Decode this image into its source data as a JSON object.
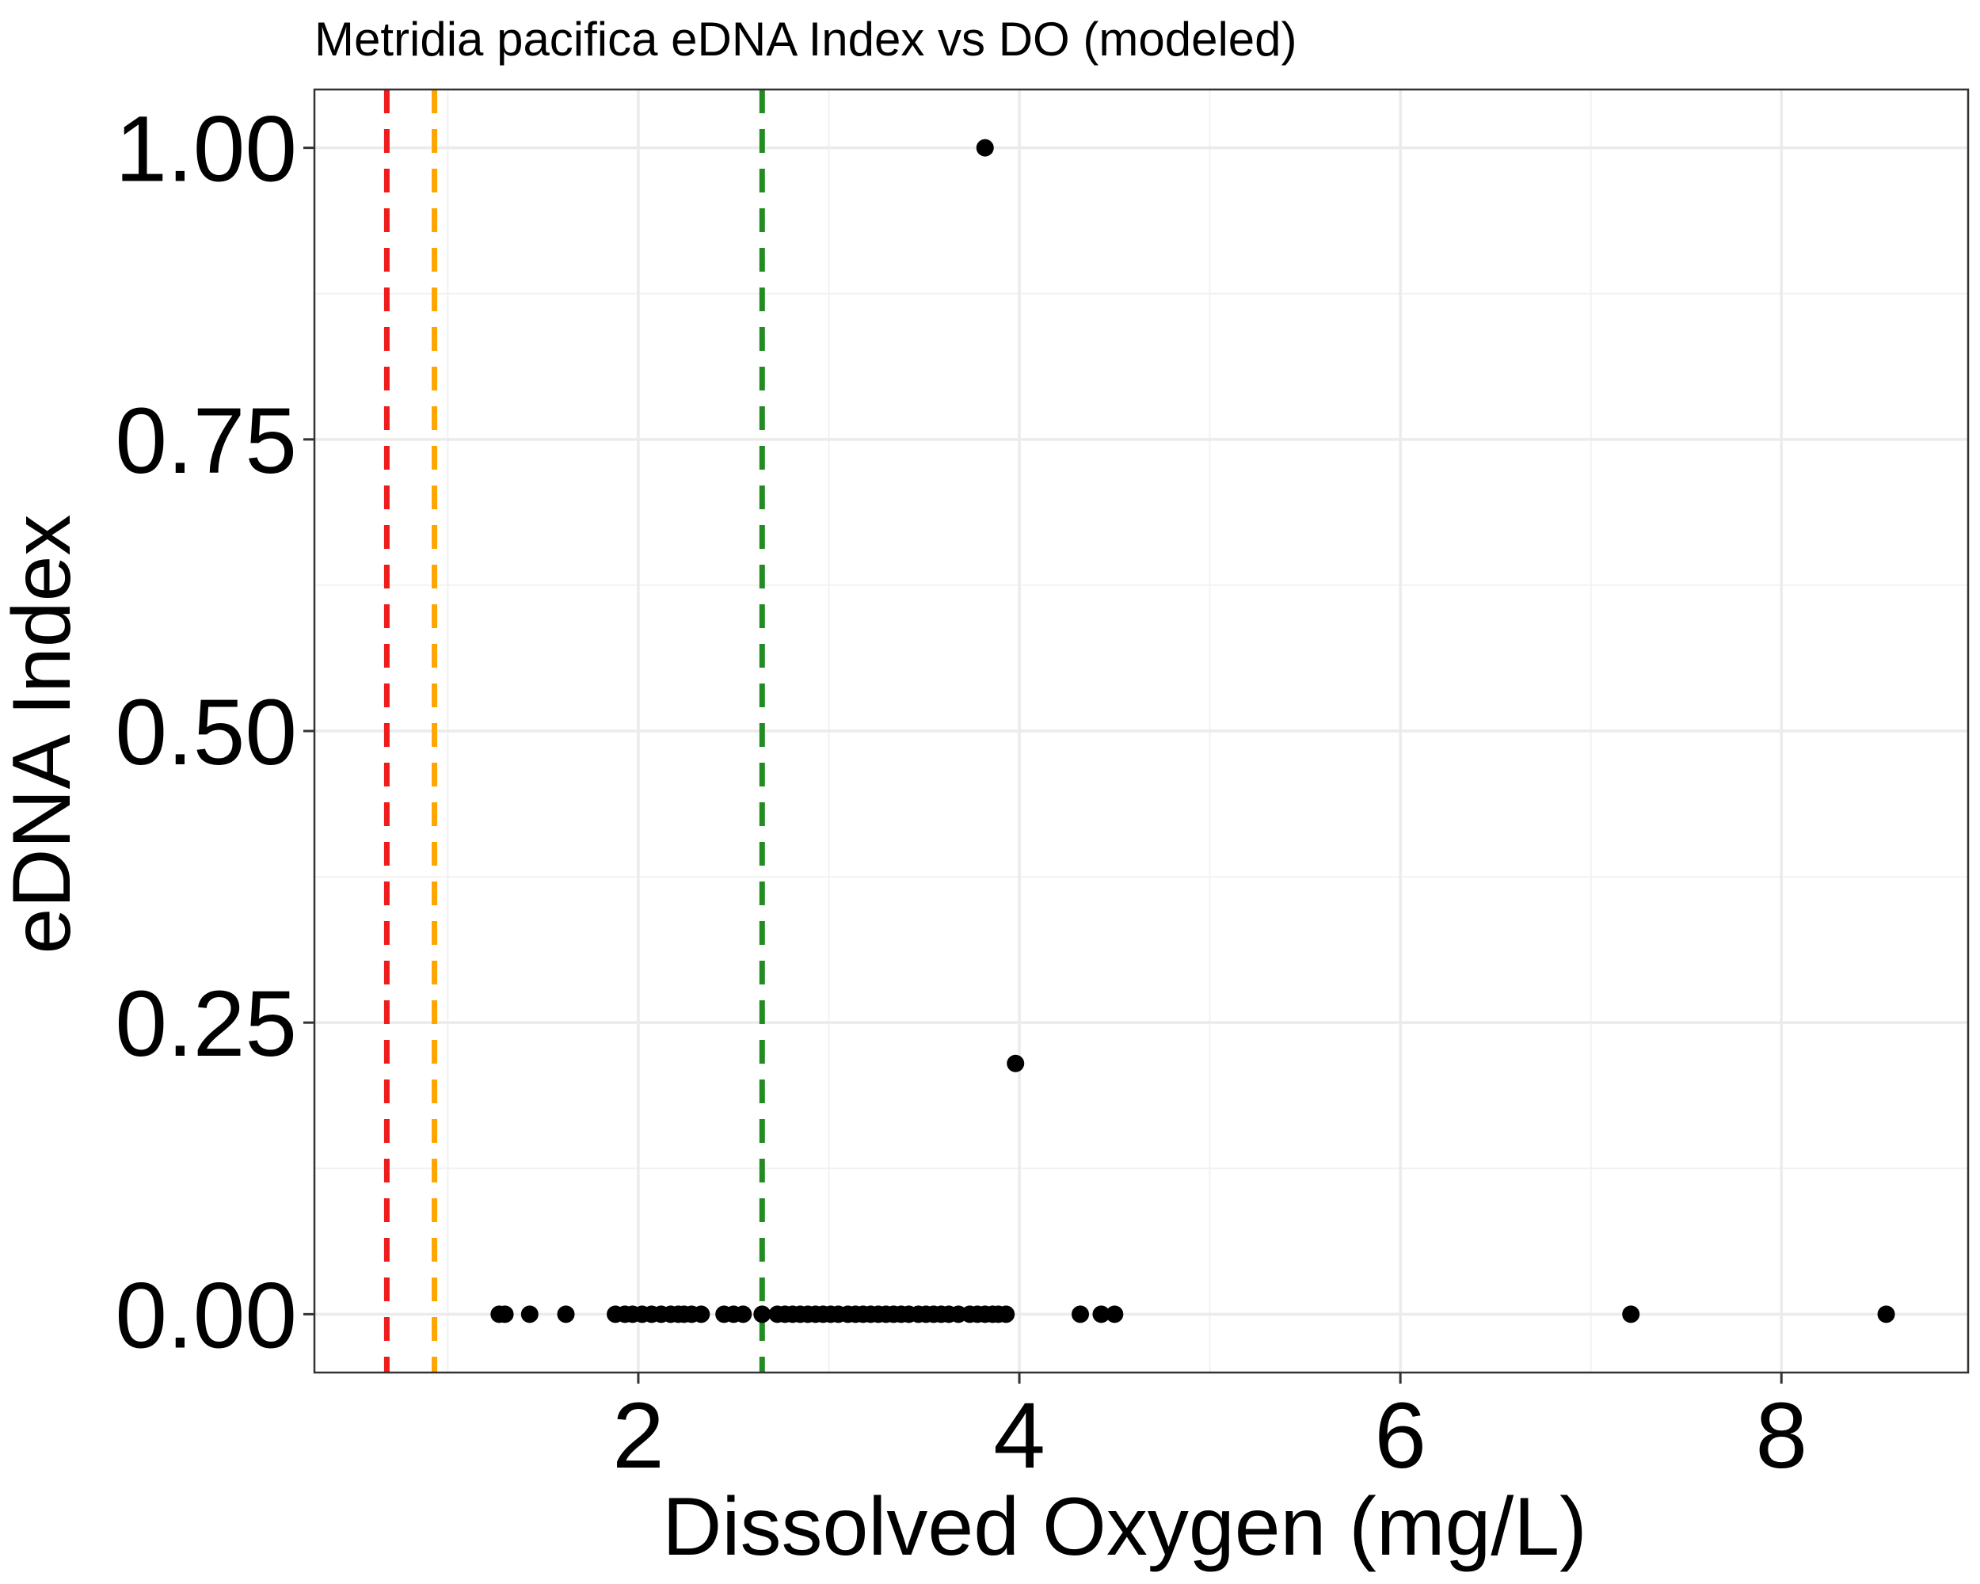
{
  "chart_data": {
    "type": "scatter",
    "title": "Metridia pacifica eDNA Index vs DO (modeled)",
    "xlabel": "Dissolved Oxygen (mg/L)",
    "ylabel": "eDNA Index",
    "xlim": [
      0.3,
      8.98
    ],
    "ylim": [
      -0.05,
      1.05
    ],
    "x_ticks": [
      2,
      4,
      6,
      8
    ],
    "x_tick_labels": [
      "2",
      "4",
      "6",
      "8"
    ],
    "y_ticks": [
      0,
      0.25,
      0.5,
      0.75,
      1
    ],
    "y_tick_labels": [
      "0.00",
      "0.25",
      "0.50",
      "0.75",
      "1.00"
    ],
    "grid": true,
    "reference_lines": [
      {
        "x": 0.68,
        "color": "#ee1c1c",
        "style": "dashed"
      },
      {
        "x": 0.93,
        "color": "#ffa500",
        "style": "dashed"
      },
      {
        "x": 2.65,
        "color": "#228b22",
        "style": "dashed"
      }
    ],
    "point_color": "#000000",
    "points": [
      {
        "x": 3.82,
        "y": 1.0
      },
      {
        "x": 3.98,
        "y": 0.215
      },
      {
        "x": 1.27,
        "y": 0
      },
      {
        "x": 1.3,
        "y": 0
      },
      {
        "x": 1.43,
        "y": 0
      },
      {
        "x": 1.62,
        "y": 0
      },
      {
        "x": 1.88,
        "y": 0
      },
      {
        "x": 1.93,
        "y": 0
      },
      {
        "x": 1.97,
        "y": 0
      },
      {
        "x": 2.02,
        "y": 0
      },
      {
        "x": 2.07,
        "y": 0
      },
      {
        "x": 2.12,
        "y": 0
      },
      {
        "x": 2.17,
        "y": 0
      },
      {
        "x": 2.21,
        "y": 0
      },
      {
        "x": 2.24,
        "y": 0
      },
      {
        "x": 2.28,
        "y": 0
      },
      {
        "x": 2.33,
        "y": 0
      },
      {
        "x": 2.45,
        "y": 0
      },
      {
        "x": 2.5,
        "y": 0
      },
      {
        "x": 2.55,
        "y": 0
      },
      {
        "x": 2.65,
        "y": 0
      },
      {
        "x": 2.73,
        "y": 0
      },
      {
        "x": 2.77,
        "y": 0
      },
      {
        "x": 2.81,
        "y": 0
      },
      {
        "x": 2.85,
        "y": 0
      },
      {
        "x": 2.89,
        "y": 0
      },
      {
        "x": 2.93,
        "y": 0
      },
      {
        "x": 2.97,
        "y": 0
      },
      {
        "x": 3.01,
        "y": 0
      },
      {
        "x": 3.05,
        "y": 0
      },
      {
        "x": 3.1,
        "y": 0
      },
      {
        "x": 3.14,
        "y": 0
      },
      {
        "x": 3.18,
        "y": 0
      },
      {
        "x": 3.22,
        "y": 0
      },
      {
        "x": 3.26,
        "y": 0
      },
      {
        "x": 3.3,
        "y": 0
      },
      {
        "x": 3.34,
        "y": 0
      },
      {
        "x": 3.38,
        "y": 0
      },
      {
        "x": 3.42,
        "y": 0
      },
      {
        "x": 3.47,
        "y": 0
      },
      {
        "x": 3.51,
        "y": 0
      },
      {
        "x": 3.55,
        "y": 0
      },
      {
        "x": 3.59,
        "y": 0
      },
      {
        "x": 3.63,
        "y": 0
      },
      {
        "x": 3.68,
        "y": 0
      },
      {
        "x": 3.74,
        "y": 0
      },
      {
        "x": 3.78,
        "y": 0
      },
      {
        "x": 3.82,
        "y": 0
      },
      {
        "x": 3.86,
        "y": 0
      },
      {
        "x": 3.89,
        "y": 0
      },
      {
        "x": 3.93,
        "y": 0
      },
      {
        "x": 4.32,
        "y": 0
      },
      {
        "x": 4.43,
        "y": 0
      },
      {
        "x": 4.5,
        "y": 0
      },
      {
        "x": 7.21,
        "y": 0
      },
      {
        "x": 8.55,
        "y": 0
      }
    ]
  }
}
